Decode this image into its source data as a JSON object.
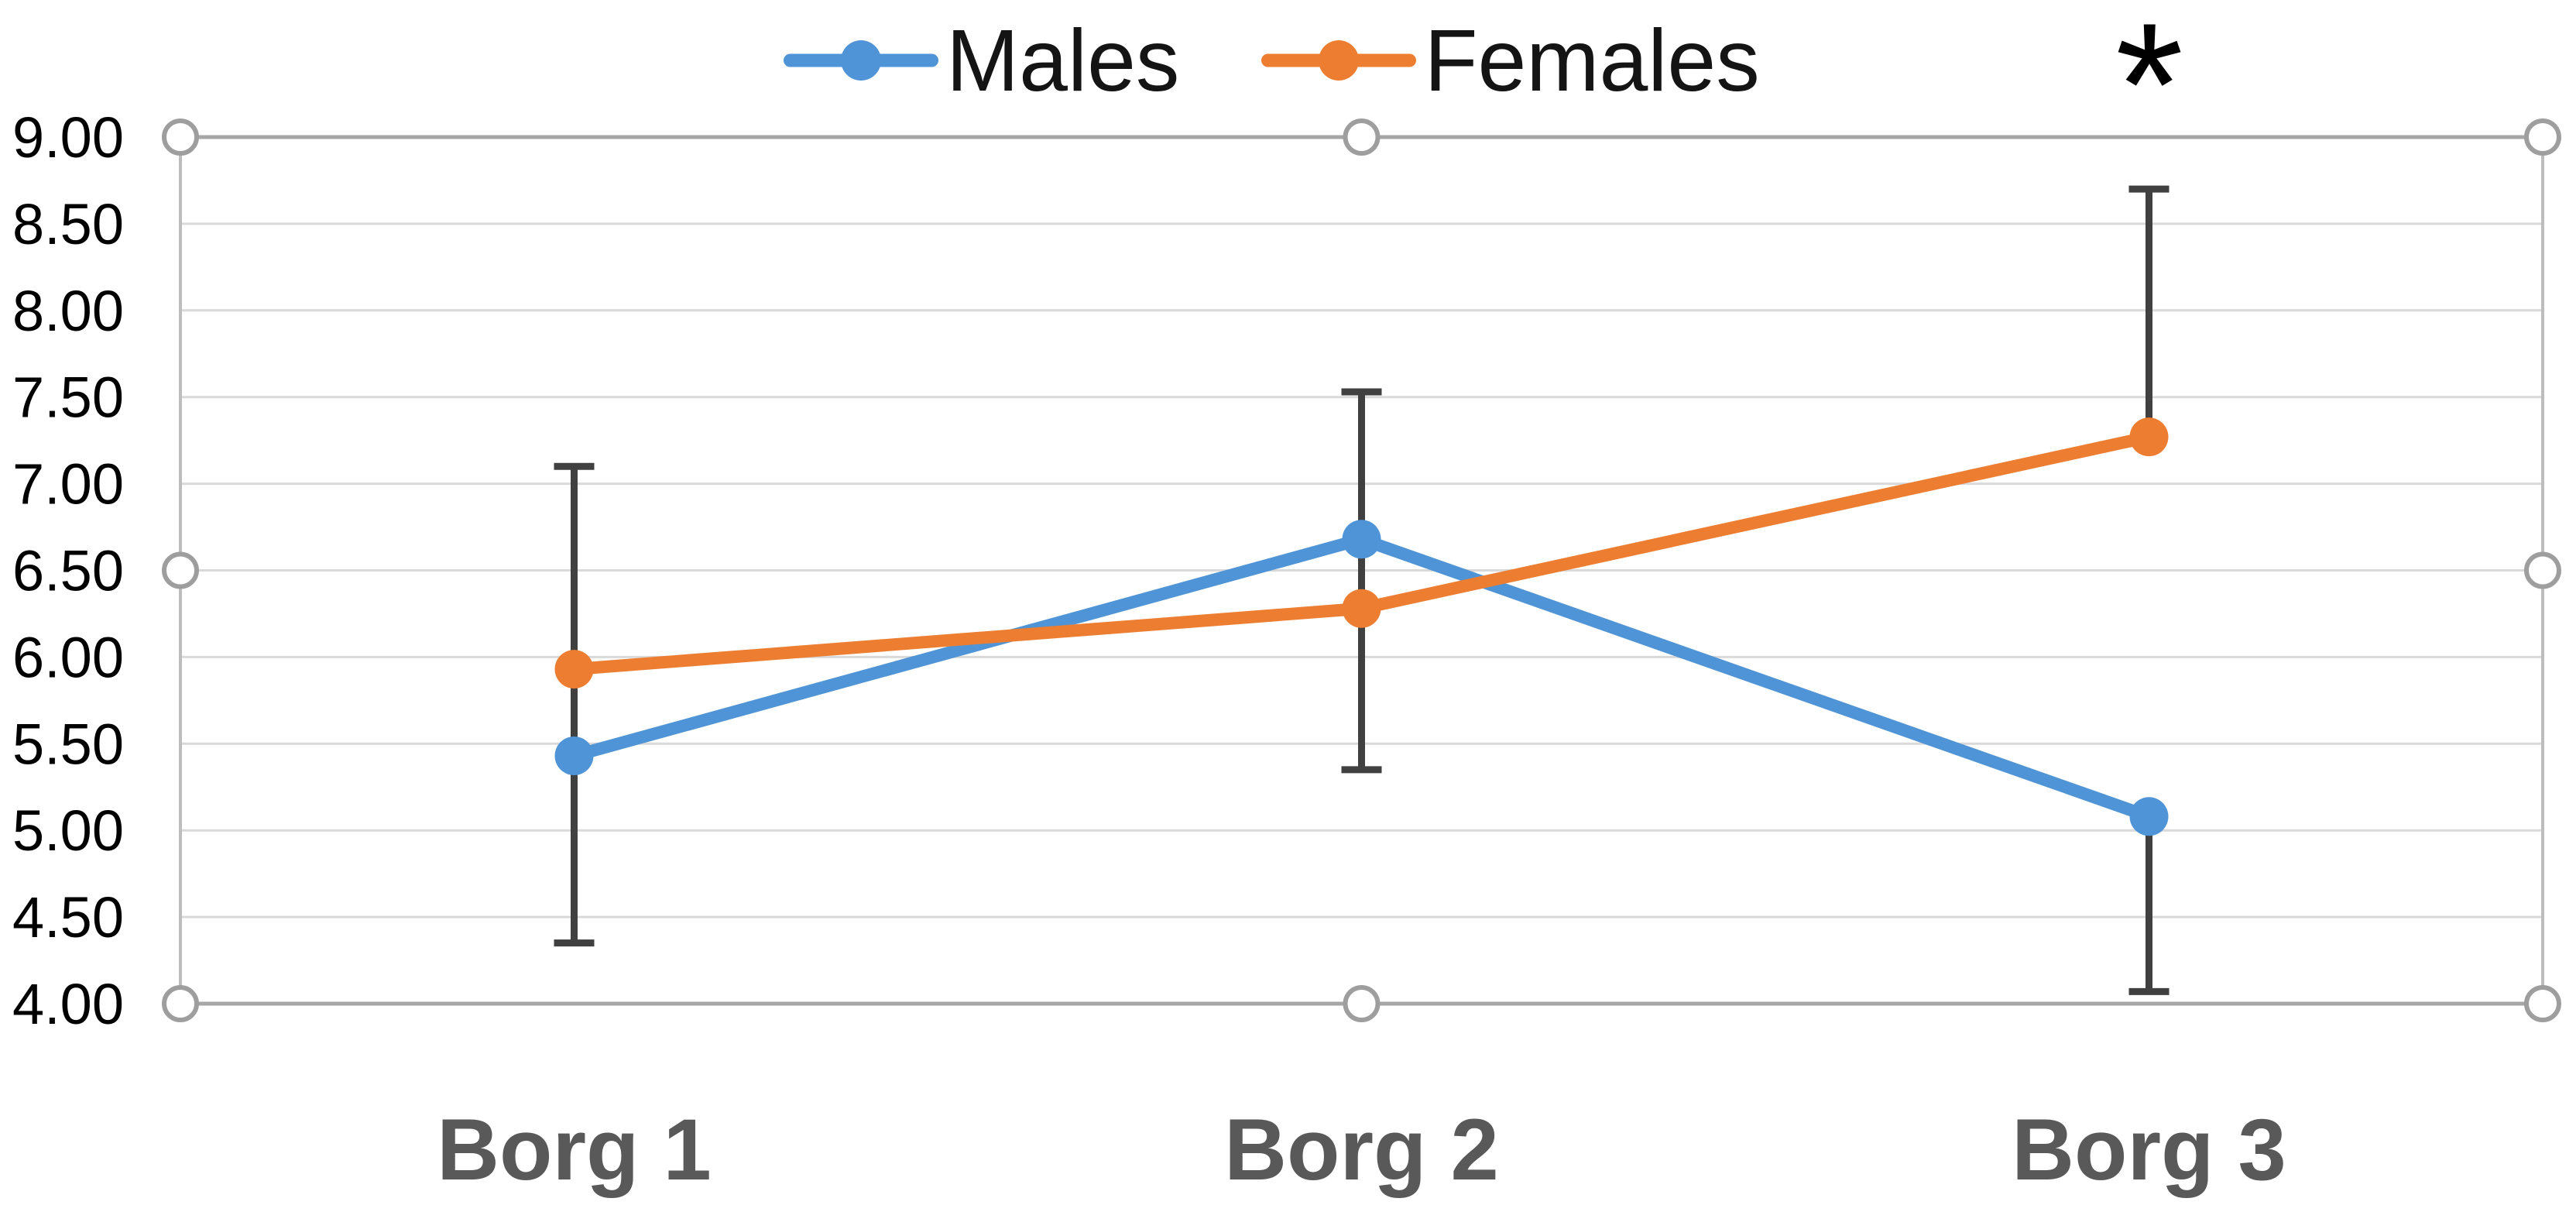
{
  "chart_data": {
    "type": "line",
    "title": "",
    "xlabel": "",
    "ylabel": "",
    "categories": [
      "Borg 1",
      "Borg 2",
      "Borg 3"
    ],
    "series": [
      {
        "name": "Males",
        "color": "#4E94D6",
        "values": [
          5.43,
          6.68,
          5.08
        ]
      },
      {
        "name": "Females",
        "color": "#ED7D31",
        "values": [
          5.93,
          6.28,
          7.27
        ]
      }
    ],
    "error_bars": {
      "color": "#404040",
      "segments": [
        {
          "category": "Borg 1",
          "low": 4.35,
          "high": 7.1,
          "cap_low": true,
          "cap_high": true
        },
        {
          "category": "Borg 2",
          "low": 5.35,
          "high": 7.53,
          "cap_low": true,
          "cap_high": true
        },
        {
          "category": "Borg 3",
          "low": 7.27,
          "high": 8.7,
          "cap_low": false,
          "cap_high": true
        },
        {
          "category": "Borg 3",
          "low": 4.07,
          "high": 5.08,
          "cap_low": true,
          "cap_high": false
        }
      ]
    },
    "y_axis": {
      "min": 4.0,
      "max": 9.0,
      "step": 0.5,
      "tick_labels": [
        "9.00",
        "8.50",
        "8.00",
        "7.50",
        "7.00",
        "6.50",
        "6.00",
        "5.50",
        "5.00",
        "4.50",
        "4.00"
      ]
    },
    "legend": {
      "position": "top",
      "items": [
        "Males",
        "Females"
      ]
    },
    "annotation": {
      "text": "*",
      "anchor_category": "Borg 3"
    },
    "grid": true,
    "selection_handles_visible": true
  }
}
